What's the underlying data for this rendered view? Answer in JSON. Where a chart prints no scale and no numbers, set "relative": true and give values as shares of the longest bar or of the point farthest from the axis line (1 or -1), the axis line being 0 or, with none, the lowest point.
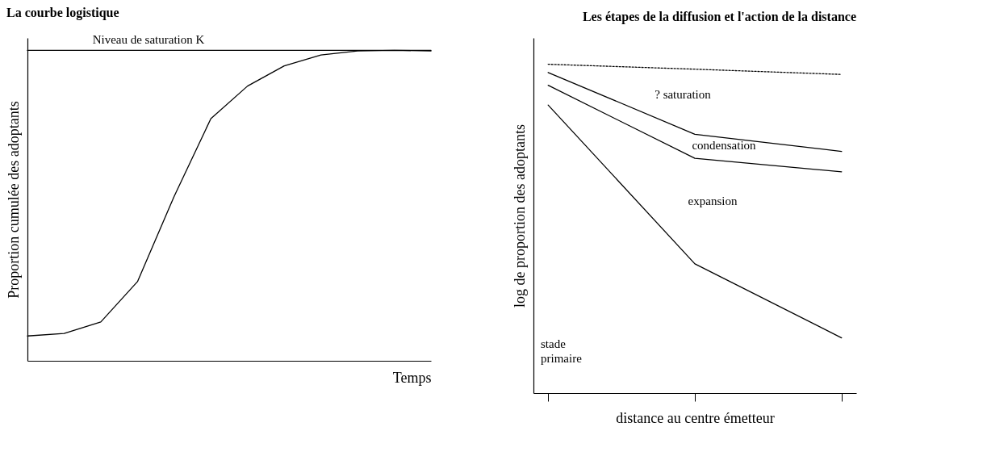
{
  "chart_data": [
    {
      "type": "line",
      "title": "La courbe logistique",
      "xlabel": "Temps",
      "ylabel": "Proportion cumulée des adoptants",
      "relative": true,
      "tick_labels": false,
      "categories": [
        null,
        null,
        null,
        null,
        null,
        null,
        null,
        null,
        null,
        null,
        null,
        null
      ],
      "series": [
        {
          "color": "#000000",
          "values": [
            0.08,
            0.088,
            0.125,
            0.255,
            0.53,
            0.78,
            0.885,
            0.95,
            0.985,
            0.998,
            1.0,
            0.998
          ]
        },
        {
          "color": "#000000",
          "values": [
            1,
            1,
            1,
            1,
            1,
            1,
            1,
            1,
            1,
            1,
            1,
            1
          ]
        }
      ],
      "annotations": [
        "Niveau de saturation K"
      ]
    },
    {
      "type": "line",
      "title": "Les étapes de la diffusion et l'action de la distance",
      "xlabel": "distance au centre émetteur",
      "ylabel": "log de proportion des adoptants",
      "relative": true,
      "tick_labels": false,
      "categories": [
        null,
        null,
        null
      ],
      "series": [
        {
          "color": "#000000",
          "line_style": "dotted",
          "values": [
            1.0,
            0.985,
            0.969
          ]
        },
        {
          "color": "#000000",
          "values": [
            0.975,
            0.787,
            0.735
          ]
        },
        {
          "color": "#000000",
          "values": [
            0.936,
            0.714,
            0.673
          ]
        },
        {
          "color": "#000000",
          "values": [
            0.876,
            0.393,
            0.168
          ]
        }
      ],
      "annotations": [
        "? saturation",
        "condensation",
        "expansion",
        "stade\nprimaire"
      ]
    }
  ]
}
